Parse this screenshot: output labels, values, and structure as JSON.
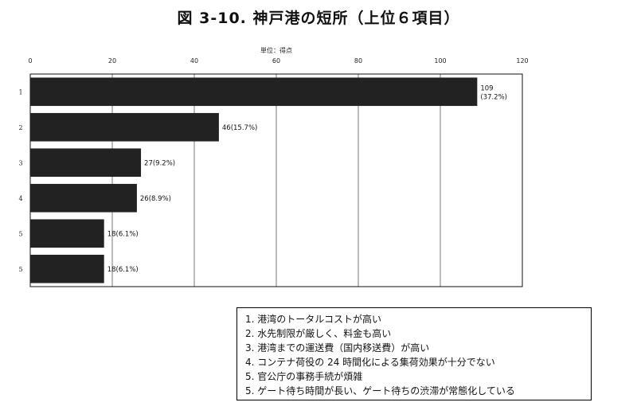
{
  "title": "図 3-10. 神戸港の短所（上位６項目）",
  "legend": [
    "1.  港湾のトータルコストが高い",
    "2.  水先制限が厳しく、料金も高い",
    "3.  港湾までの運送費（国内移送費）が高い",
    "4.  コンテナ荷役の 24 時間化による集荷効果が十分でない",
    "5.  官公庁の事務手続が煩雑",
    "5.  ゲート待ち時間が長い、ゲート待ちの渋滞が常態化している"
  ],
  "chart_data": {
    "type": "bar",
    "orientation": "horizontal",
    "title": "図 3-10. 神戸港の短所（上位６項目）",
    "unit_label": "単位：得点",
    "categories": [
      "1",
      "2",
      "3",
      "4",
      "5",
      "5"
    ],
    "values": [
      109,
      46,
      27,
      26,
      18,
      18
    ],
    "data_labels": [
      "109\n(37.2%)",
      "46(15.7%)",
      "27(9.2%)",
      "26(8.9%)",
      "18(6.1%)",
      "18(6.1%)"
    ],
    "xlim": [
      0,
      120
    ],
    "xticks": [
      0,
      20,
      40,
      60,
      80,
      100,
      120
    ],
    "grid": true,
    "bar_color": "#222222"
  }
}
